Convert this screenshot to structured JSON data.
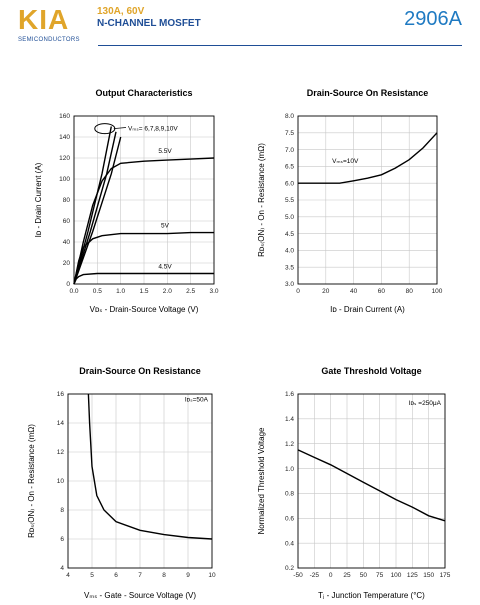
{
  "header": {
    "logo_text": "KIA",
    "logo_sub": "SEMICONDUCTORS",
    "line1": "130A,  60V",
    "line2": "N-CHANNEL MOSFET",
    "part_number": "2906A",
    "colors": {
      "gold": "#e0a52a",
      "navy": "#1f4e96",
      "blue": "#1f7ac2"
    }
  },
  "charts": [
    {
      "title": "Output Characteristics",
      "xlabel": "Vᴅₛ - Drain-Source Voltage (V)",
      "ylabel": "Iᴅ - Drain Current (A)",
      "xticks": [
        "0.0",
        "0.5",
        "1.0",
        "1.5",
        "2.0",
        "2.5",
        "3.0"
      ],
      "yticks": [
        "0",
        "20",
        "40",
        "60",
        "80",
        "100",
        "120",
        "140",
        "160"
      ],
      "annotations": [
        "Vₘₛ= 6,7,8,9,10V",
        "5.5V",
        "5V",
        "4.5V"
      ]
    },
    {
      "title": "Drain-Source On Resistance",
      "xlabel": "Iᴅ - Drain Current (A)",
      "ylabel": "Rᴅₛ₍ON₎ - On - Resistance (mΩ)",
      "xticks": [
        "0",
        "20",
        "40",
        "60",
        "80",
        "100"
      ],
      "yticks": [
        "3.0",
        "3.5",
        "4.0",
        "4.5",
        "5.0",
        "5.5",
        "6.0",
        "6.5",
        "7.0",
        "7.5",
        "8.0"
      ],
      "annotations": [
        "Vₘₛ=10V"
      ]
    },
    {
      "title": "Drain-Source On Resistance",
      "xlabel": "Vₘₛ - Gate - Source Voltage (V)",
      "ylabel": "Rᴅₛ₍ON₎ - On - Resistance (mΩ)",
      "xticks": [
        "4",
        "5",
        "6",
        "7",
        "8",
        "9",
        "10"
      ],
      "yticks": [
        "4",
        "6",
        "8",
        "10",
        "12",
        "14",
        "16"
      ],
      "annotations": [
        "Iᴅₛ=50A"
      ]
    },
    {
      "title": "Gate Threshold Voltage",
      "xlabel": "Tⱼ - Junction Temperature (°C)",
      "ylabel": "Normalized Threshold Voltage",
      "xticks": [
        "-50",
        "-25",
        "0",
        "25",
        "50",
        "75",
        "100",
        "125",
        "150",
        "175"
      ],
      "yticks": [
        "0.2",
        "0.4",
        "0.6",
        "0.8",
        "1.0",
        "1.2",
        "1.4",
        "1.6"
      ],
      "annotations": [
        "Iᴅₛ =250μA"
      ]
    }
  ],
  "chart_data": [
    {
      "type": "line",
      "title": "Output Characteristics",
      "xlabel": "VDS - Drain-Source Voltage (V)",
      "ylabel": "ID - Drain Current (A)",
      "xlim": [
        0,
        3.0
      ],
      "ylim": [
        0,
        160
      ],
      "grid": true,
      "series": [
        {
          "name": "VGS= 6,7,8,9,10V",
          "x": [
            0,
            0.3,
            0.6,
            0.8
          ],
          "y": [
            0,
            50,
            105,
            150
          ]
        },
        {
          "name": "VGS= 6,7,8,9,10V",
          "x": [
            0,
            0.35,
            0.7,
            0.9
          ],
          "y": [
            0,
            50,
            105,
            145
          ]
        },
        {
          "name": "VGS= 6,7,8,9,10V",
          "x": [
            0,
            0.4,
            0.8,
            1.0
          ],
          "y": [
            0,
            50,
            105,
            140
          ]
        },
        {
          "name": "5.5V",
          "x": [
            0,
            0.2,
            0.4,
            0.6,
            0.8,
            1.0,
            1.5,
            2.0,
            2.5,
            3.0
          ],
          "y": [
            0,
            40,
            75,
            98,
            110,
            115,
            117,
            118,
            119,
            120
          ]
        },
        {
          "name": "5V",
          "x": [
            0,
            0.1,
            0.2,
            0.4,
            0.6,
            1.0,
            1.5,
            2.0,
            2.5,
            3.0
          ],
          "y": [
            0,
            22,
            35,
            43,
            46,
            48,
            48,
            48,
            49,
            49
          ]
        },
        {
          "name": "4.5V",
          "x": [
            0,
            0.05,
            0.1,
            0.2,
            0.5,
            1.0,
            2.0,
            3.0
          ],
          "y": [
            0,
            5,
            7,
            9,
            10,
            10,
            10,
            10
          ]
        }
      ]
    },
    {
      "type": "line",
      "title": "Drain-Source On Resistance",
      "xlabel": "ID - Drain Current (A)",
      "ylabel": "RDS(ON) - On - Resistance (mΩ)",
      "xlim": [
        0,
        100
      ],
      "ylim": [
        3.0,
        8.0
      ],
      "grid": true,
      "series": [
        {
          "name": "VGS=10V",
          "x": [
            0,
            10,
            20,
            30,
            40,
            50,
            60,
            70,
            80,
            90,
            100
          ],
          "y": [
            6.0,
            6.0,
            6.0,
            6.0,
            6.07,
            6.15,
            6.25,
            6.45,
            6.7,
            7.05,
            7.5
          ]
        }
      ]
    },
    {
      "type": "line",
      "title": "Drain-Source On Resistance",
      "xlabel": "VGS - Gate - Source Voltage (V)",
      "ylabel": "RDS(ON) - On - Resistance (mΩ)",
      "xlim": [
        4,
        10
      ],
      "ylim": [
        4,
        16
      ],
      "grid": true,
      "series": [
        {
          "name": "IDS=50A",
          "x": [
            4.85,
            4.9,
            5.0,
            5.2,
            5.5,
            6.0,
            7.0,
            8.0,
            9.0,
            10.0
          ],
          "y": [
            16.0,
            14.0,
            11.0,
            9.0,
            8.0,
            7.2,
            6.6,
            6.3,
            6.1,
            6.0
          ]
        }
      ]
    },
    {
      "type": "line",
      "title": "Gate Threshold Voltage",
      "xlabel": "Tj - Junction Temperature (°C)",
      "ylabel": "Normalized Threshold Voltage",
      "xlim": [
        -50,
        175
      ],
      "ylim": [
        0.2,
        1.6
      ],
      "grid": true,
      "series": [
        {
          "name": "IDS =250μA",
          "x": [
            -50,
            -25,
            0,
            25,
            50,
            75,
            100,
            125,
            150,
            175
          ],
          "y": [
            1.15,
            1.09,
            1.03,
            0.96,
            0.89,
            0.82,
            0.75,
            0.69,
            0.62,
            0.58
          ]
        }
      ]
    }
  ]
}
